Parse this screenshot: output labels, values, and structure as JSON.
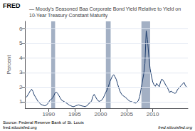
{
  "chart_data": {
    "type": "line",
    "title": "— Moody's Seasoned Baa Corporate Bond Yield Relative to Yield on 10-Year Treasury Constant Maturity",
    "ylabel": "Percent",
    "annotations": [
      "FRED",
      "Source: Federal Reserve Bank of St. Louis\nfred.stlouisfed.org",
      "fred.stlouisfed.org"
    ],
    "color": "#1a3a6b",
    "xlim": [
      1985.5,
      2016.75
    ],
    "xticks": [
      1990,
      1995,
      2000,
      2005,
      2010
    ],
    "ylim": [
      0.55,
      6.5
    ],
    "yticks": [
      1,
      2,
      3,
      4,
      5,
      6
    ],
    "grid": true,
    "recession_bands": [
      [
        1990.5,
        1991.25
      ],
      [
        2001.0,
        2001.92
      ],
      [
        2007.83,
        2009.5
      ]
    ],
    "x": [
      1985.75,
      1986.0,
      1986.25,
      1986.5,
      1986.75,
      1987.0,
      1987.25,
      1987.5,
      1987.75,
      1988.0,
      1988.25,
      1988.5,
      1988.75,
      1989.0,
      1989.25,
      1989.5,
      1989.75,
      1990.0,
      1990.25,
      1990.5,
      1990.75,
      1991.0,
      1991.25,
      1991.5,
      1991.75,
      1992.0,
      1992.25,
      1992.5,
      1992.75,
      1993.0,
      1993.25,
      1993.5,
      1993.75,
      1994.0,
      1994.25,
      1994.5,
      1994.75,
      1995.0,
      1995.25,
      1995.5,
      1995.75,
      1996.0,
      1996.25,
      1996.5,
      1996.75,
      1997.0,
      1997.25,
      1997.5,
      1997.75,
      1998.0,
      1998.25,
      1998.5,
      1998.75,
      1999.0,
      1999.25,
      1999.5,
      1999.75,
      2000.0,
      2000.25,
      2000.5,
      2000.75,
      2001.0,
      2001.25,
      2001.5,
      2001.75,
      2002.0,
      2002.25,
      2002.5,
      2002.75,
      2003.0,
      2003.25,
      2003.5,
      2003.75,
      2004.0,
      2004.25,
      2004.5,
      2004.75,
      2005.0,
      2005.25,
      2005.5,
      2005.75,
      2006.0,
      2006.25,
      2006.5,
      2006.75,
      2007.0,
      2007.25,
      2007.5,
      2007.75,
      2008.0,
      2008.25,
      2008.5,
      2008.75,
      2009.0,
      2009.25,
      2009.5,
      2009.75,
      2010.0,
      2010.25,
      2010.5,
      2010.75,
      2011.0,
      2011.25,
      2011.5,
      2011.75,
      2012.0,
      2012.25,
      2012.5,
      2012.75,
      2013.0,
      2013.25,
      2013.5,
      2013.75,
      2014.0,
      2014.25,
      2014.5,
      2014.75,
      2015.0,
      2015.25,
      2015.5,
      2015.75,
      2016.0,
      2016.25,
      2016.5
    ],
    "values": [
      1.3,
      1.45,
      1.6,
      1.75,
      1.85,
      1.7,
      1.45,
      1.3,
      1.15,
      1.0,
      0.9,
      0.82,
      0.78,
      0.75,
      0.72,
      0.75,
      0.82,
      0.95,
      1.1,
      1.15,
      1.25,
      1.4,
      1.6,
      1.65,
      1.55,
      1.4,
      1.25,
      1.1,
      1.05,
      1.0,
      0.95,
      0.88,
      0.82,
      0.76,
      0.72,
      0.68,
      0.65,
      0.68,
      0.72,
      0.75,
      0.78,
      0.75,
      0.72,
      0.7,
      0.68,
      0.66,
      0.7,
      0.76,
      0.88,
      0.92,
      1.05,
      1.35,
      1.5,
      1.35,
      1.18,
      1.06,
      1.02,
      1.06,
      1.12,
      1.25,
      1.45,
      1.65,
      1.82,
      2.05,
      2.35,
      2.55,
      2.75,
      2.85,
      2.7,
      2.52,
      2.22,
      1.92,
      1.68,
      1.52,
      1.42,
      1.36,
      1.3,
      1.22,
      1.12,
      1.06,
      1.0,
      0.99,
      0.95,
      0.92,
      0.9,
      0.96,
      1.08,
      1.35,
      1.85,
      2.35,
      2.85,
      3.6,
      5.85,
      5.25,
      4.1,
      3.25,
      2.75,
      2.35,
      2.15,
      2.05,
      2.25,
      2.12,
      2.02,
      2.35,
      2.55,
      2.45,
      2.32,
      2.12,
      2.02,
      1.82,
      1.62,
      1.72,
      1.66,
      1.62,
      1.56,
      1.62,
      1.82,
      1.92,
      2.02,
      2.12,
      2.22,
      2.32,
      2.12,
      1.98
    ]
  }
}
